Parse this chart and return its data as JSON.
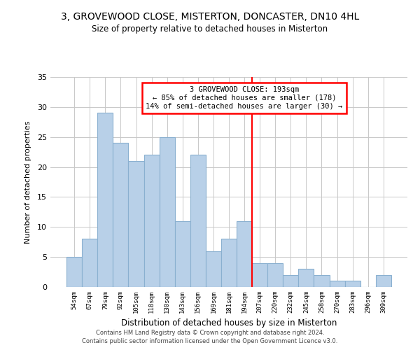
{
  "title": "3, GROVEWOOD CLOSE, MISTERTON, DONCASTER, DN10 4HL",
  "subtitle": "Size of property relative to detached houses in Misterton",
  "xlabel": "Distribution of detached houses by size in Misterton",
  "ylabel": "Number of detached properties",
  "bar_labels": [
    "54sqm",
    "67sqm",
    "79sqm",
    "92sqm",
    "105sqm",
    "118sqm",
    "130sqm",
    "143sqm",
    "156sqm",
    "169sqm",
    "181sqm",
    "194sqm",
    "207sqm",
    "220sqm",
    "232sqm",
    "245sqm",
    "258sqm",
    "270sqm",
    "283sqm",
    "296sqm",
    "309sqm"
  ],
  "bar_values": [
    5,
    8,
    29,
    24,
    21,
    22,
    25,
    11,
    22,
    6,
    8,
    11,
    4,
    4,
    2,
    3,
    2,
    1,
    1,
    0,
    2
  ],
  "bar_color": "#b8d0e8",
  "bar_edge_color": "#8ab0d0",
  "reference_line_index": 11,
  "ylim": [
    0,
    35
  ],
  "yticks": [
    0,
    5,
    10,
    15,
    20,
    25,
    30,
    35
  ],
  "annotation_title": "3 GROVEWOOD CLOSE: 193sqm",
  "annotation_line1": "← 85% of detached houses are smaller (178)",
  "annotation_line2": "14% of semi-detached houses are larger (30) →",
  "footer_line1": "Contains HM Land Registry data © Crown copyright and database right 2024.",
  "footer_line2": "Contains public sector information licensed under the Open Government Licence v3.0.",
  "background_color": "#ffffff",
  "grid_color": "#c8c8c8"
}
